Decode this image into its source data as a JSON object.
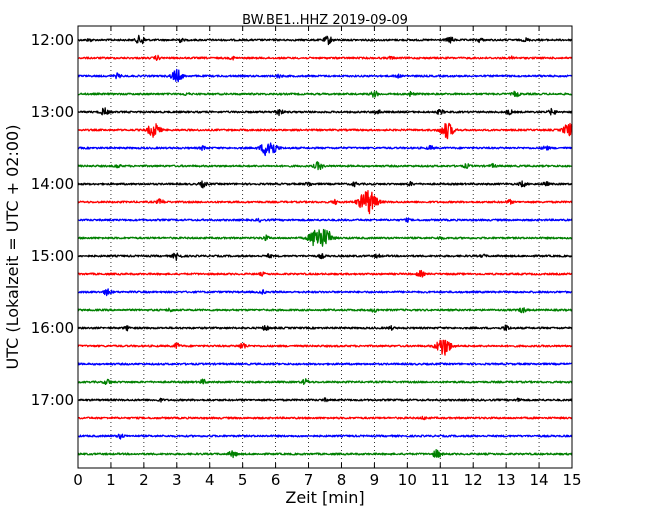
{
  "chart_data": {
    "type": "line",
    "title": "BW.BE1..HHZ 2019-09-09",
    "xlabel": "Zeit  [min]",
    "ylabel": "UTC (Lokalzeit = UTC + 02:00)",
    "xlim": [
      0,
      15
    ],
    "x_ticks": [
      "0",
      "1",
      "2",
      "3",
      "4",
      "5",
      "6",
      "7",
      "8",
      "9",
      "10",
      "11",
      "12",
      "13",
      "14",
      "15"
    ],
    "y_tick_labels": [
      "12:00",
      "13:00",
      "14:00",
      "15:00",
      "16:00",
      "17:00"
    ],
    "grid": {
      "x": "dotted",
      "y": false
    },
    "trace_interval_min": 15,
    "series": [
      {
        "start": "12:00",
        "color": "#000000",
        "events": [
          [
            0.35,
            0.4
          ],
          [
            1.9,
            1.4
          ],
          [
            3.1,
            0.6
          ],
          [
            7.6,
            1.2
          ],
          [
            11.3,
            0.9
          ],
          [
            12.2,
            0.6
          ],
          [
            13.6,
            0.5
          ]
        ]
      },
      {
        "start": "12:15",
        "color": "#ff0000",
        "events": [
          [
            2.4,
            0.6
          ],
          [
            4.7,
            0.4
          ],
          [
            9.5,
            0.4
          ],
          [
            13.2,
            0.4
          ]
        ]
      },
      {
        "start": "12:30",
        "color": "#0000ff",
        "events": [
          [
            1.2,
            0.7
          ],
          [
            3.0,
            1.9
          ],
          [
            6.1,
            0.5
          ],
          [
            9.7,
            0.5
          ]
        ]
      },
      {
        "start": "12:45",
        "color": "#008000",
        "events": [
          [
            3.3,
            0.4
          ],
          [
            9.0,
            0.9
          ],
          [
            10.1,
            0.6
          ],
          [
            13.3,
            0.8
          ]
        ]
      },
      {
        "start": "13:00",
        "color": "#000000",
        "events": [
          [
            0.8,
            1.1
          ],
          [
            6.1,
            1.0
          ],
          [
            9.1,
            0.7
          ],
          [
            11.0,
            0.7
          ],
          [
            13.1,
            0.7
          ],
          [
            14.4,
            0.9
          ]
        ]
      },
      {
        "start": "13:15",
        "color": "#ff0000",
        "events": [
          [
            2.3,
            2.2
          ],
          [
            11.2,
            2.5
          ],
          [
            14.9,
            2.0
          ]
        ]
      },
      {
        "start": "13:30",
        "color": "#0000ff",
        "events": [
          [
            3.8,
            0.6
          ],
          [
            5.8,
            3.0
          ],
          [
            10.7,
            0.6
          ],
          [
            14.2,
            0.7
          ]
        ]
      },
      {
        "start": "13:45",
        "color": "#008000",
        "events": [
          [
            1.2,
            0.5
          ],
          [
            7.3,
            1.2
          ],
          [
            11.8,
            0.6
          ],
          [
            12.6,
            0.5
          ]
        ]
      },
      {
        "start": "14:00",
        "color": "#000000",
        "events": [
          [
            3.8,
            0.9
          ],
          [
            7.0,
            0.6
          ],
          [
            8.4,
            0.6
          ],
          [
            10.1,
            0.5
          ],
          [
            13.5,
            0.8
          ],
          [
            14.2,
            0.6
          ]
        ]
      },
      {
        "start": "14:15",
        "color": "#ff0000",
        "events": [
          [
            2.5,
            0.8
          ],
          [
            7.8,
            0.6
          ],
          [
            8.8,
            3.8
          ],
          [
            13.1,
            0.6
          ]
        ]
      },
      {
        "start": "14:30",
        "color": "#0000ff",
        "events": [
          [
            5.5,
            0.4
          ],
          [
            10.0,
            0.4
          ]
        ]
      },
      {
        "start": "14:45",
        "color": "#008000",
        "events": [
          [
            5.7,
            0.7
          ],
          [
            7.3,
            3.6
          ],
          [
            7.6,
            1.4
          ],
          [
            11.0,
            0.4
          ]
        ]
      },
      {
        "start": "15:00",
        "color": "#000000",
        "events": [
          [
            3.0,
            1.1
          ],
          [
            5.8,
            0.5
          ],
          [
            7.4,
            0.6
          ],
          [
            9.1,
            0.5
          ],
          [
            12.3,
            0.4
          ]
        ]
      },
      {
        "start": "15:15",
        "color": "#ff0000",
        "events": [
          [
            5.6,
            0.4
          ],
          [
            10.4,
            0.9
          ]
        ]
      },
      {
        "start": "15:30",
        "color": "#0000ff",
        "events": [
          [
            0.9,
            1.0
          ],
          [
            5.6,
            0.5
          ]
        ]
      },
      {
        "start": "15:45",
        "color": "#008000",
        "events": [
          [
            2.8,
            0.5
          ],
          [
            9.0,
            0.6
          ],
          [
            13.5,
            0.8
          ]
        ]
      },
      {
        "start": "16:00",
        "color": "#000000",
        "events": [
          [
            1.5,
            0.6
          ],
          [
            5.7,
            0.7
          ],
          [
            9.5,
            0.5
          ],
          [
            13.0,
            0.8
          ]
        ]
      },
      {
        "start": "16:15",
        "color": "#ff0000",
        "events": [
          [
            3.0,
            0.8
          ],
          [
            5.0,
            1.0
          ],
          [
            11.1,
            2.9
          ]
        ]
      },
      {
        "start": "16:30",
        "color": "#0000ff",
        "events": []
      },
      {
        "start": "16:45",
        "color": "#008000",
        "events": [
          [
            0.9,
            0.8
          ],
          [
            3.8,
            0.7
          ],
          [
            6.9,
            0.8
          ]
        ]
      },
      {
        "start": "17:00",
        "color": "#000000",
        "events": [
          [
            2.5,
            0.4
          ],
          [
            7.5,
            0.4
          ],
          [
            13.4,
            0.5
          ]
        ]
      },
      {
        "start": "17:15",
        "color": "#ff0000",
        "events": [
          [
            10.5,
            0.4
          ]
        ]
      },
      {
        "start": "17:30",
        "color": "#0000ff",
        "events": [
          [
            1.3,
            0.7
          ]
        ]
      },
      {
        "start": "17:45",
        "color": "#008000",
        "events": [
          [
            4.7,
            1.0
          ],
          [
            10.9,
            1.2
          ]
        ]
      }
    ]
  }
}
